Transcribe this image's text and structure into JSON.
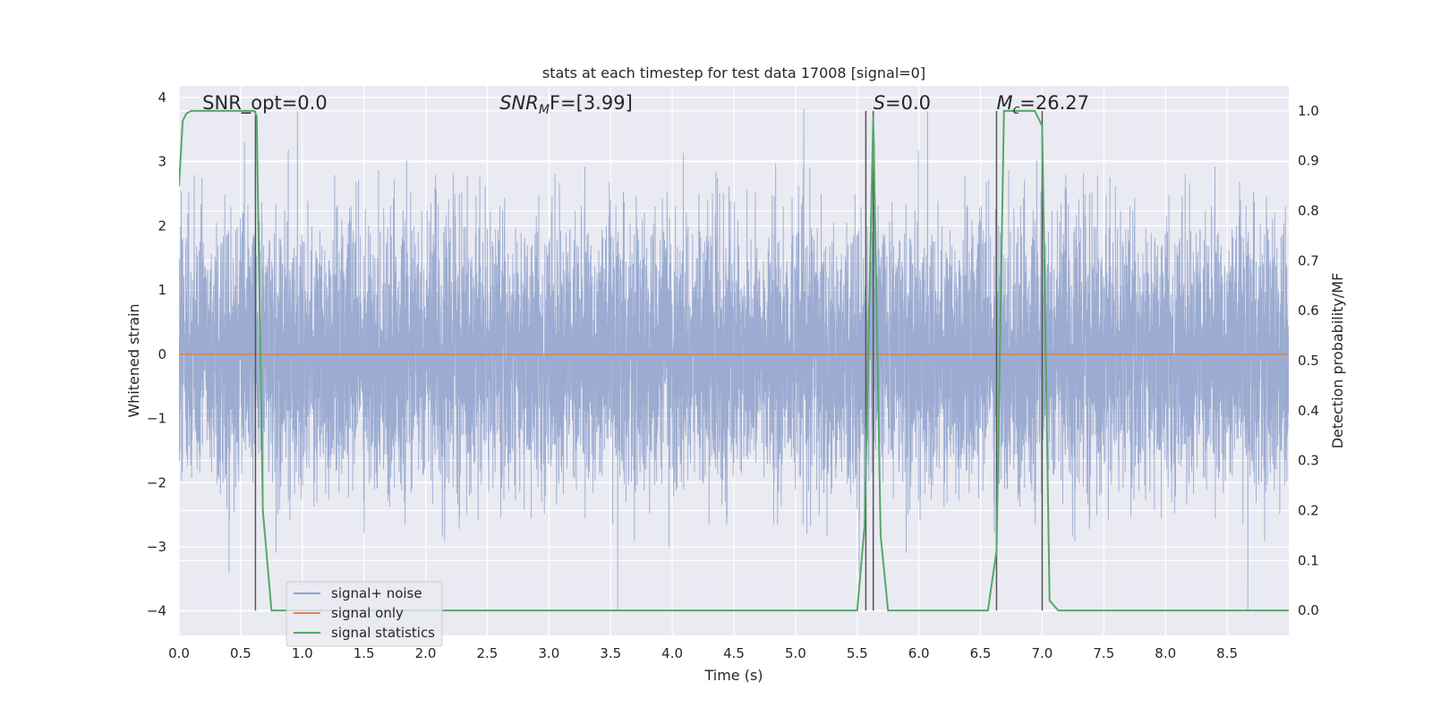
{
  "chart_data": {
    "type": "line",
    "title": "stats at each timestep for test data 17008 [signal=0]",
    "xlabel": "Time (s)",
    "ylabel_left": "Whitened strain",
    "ylabel_right": "Detection probability/MF",
    "xlim": [
      0.0,
      9.0
    ],
    "ylim_left": [
      -4.38,
      4.18
    ],
    "ylim_right": [
      -0.05,
      1.05
    ],
    "xticks": [
      0.0,
      0.5,
      1.0,
      1.5,
      2.0,
      2.5,
      3.0,
      3.5,
      4.0,
      4.5,
      5.0,
      5.5,
      6.0,
      6.5,
      7.0,
      7.5,
      8.0,
      8.5
    ],
    "xtick_labels": [
      "0.0",
      "0.5",
      "1.0",
      "1.5",
      "2.0",
      "2.5",
      "3.0",
      "3.5",
      "4.0",
      "4.5",
      "5.0",
      "5.5",
      "6.0",
      "6.5",
      "7.0",
      "7.5",
      "8.0",
      "8.5"
    ],
    "yticks_left": [
      -4,
      -3,
      -2,
      -1,
      0,
      1,
      2,
      3,
      4
    ],
    "ytick_labels_left": [
      "−4",
      "−3",
      "−2",
      "−1",
      "0",
      "1",
      "2",
      "3",
      "4"
    ],
    "yticks_right": [
      0.0,
      0.1,
      0.2,
      0.3,
      0.4,
      0.5,
      0.6,
      0.7,
      0.8,
      0.9,
      1.0
    ],
    "ytick_labels_right": [
      "0.0",
      "0.1",
      "0.2",
      "0.3",
      "0.4",
      "0.5",
      "0.6",
      "0.7",
      "0.8",
      "0.9",
      "1.0"
    ],
    "grid": true,
    "legend_position": "lower-left",
    "annotations": [
      {
        "text": "SNR_opt=0.0",
        "x": 0.19,
        "y_right": 1.0
      },
      {
        "text": "SNR",
        "sub": "M",
        "text_after": "F=[3.99]",
        "italic_main": true,
        "x": 2.6,
        "y_right": 1.0
      },
      {
        "text": "S",
        "text_after": "=0.0",
        "italic_main": true,
        "x": 5.63,
        "y_right": 1.0
      },
      {
        "text": "M",
        "sub": "c",
        "text_after": "=26.27",
        "italic_main": true,
        "x": 6.63,
        "y_right": 1.0
      }
    ],
    "vlines_x": [
      0.62,
      5.57,
      5.63,
      6.63,
      7.0
    ],
    "vline_top_right": 1.0,
    "series": [
      {
        "name": "signal+ noise",
        "color": "#8da0cb",
        "axis": "left",
        "kind": "noise",
        "sample_rate": 1024,
        "duration": 9.0,
        "amplitude_range": [
          -4.0,
          3.9
        ]
      },
      {
        "name": "signal only",
        "color": "#dd8452",
        "axis": "left",
        "x": [
          0.0,
          9.0
        ],
        "values": [
          0.0,
          0.0
        ]
      },
      {
        "name": "signal statistics",
        "color": "#55a868",
        "axis": "right",
        "x": [
          0.0,
          0.03,
          0.06,
          0.1,
          0.15,
          0.25,
          0.4,
          0.55,
          0.61,
          0.63,
          0.68,
          0.75,
          1.0,
          2.0,
          3.0,
          4.0,
          5.0,
          5.5,
          5.56,
          5.63,
          5.69,
          5.75,
          6.0,
          6.5,
          6.56,
          6.63,
          6.69,
          6.75,
          6.94,
          7.0,
          7.06,
          7.13,
          7.5,
          8.0,
          8.5,
          9.0
        ],
        "values": [
          0.85,
          0.98,
          0.995,
          1.0,
          1.0,
          1.0,
          1.0,
          1.0,
          1.0,
          0.99,
          0.2,
          0.0,
          0.0,
          0.0,
          0.0,
          0.0,
          0.0,
          0.0,
          0.17,
          0.99,
          0.15,
          0.0,
          0.0,
          0.0,
          0.0,
          0.12,
          1.0,
          1.0,
          1.0,
          0.97,
          0.02,
          0.0,
          0.0,
          0.0,
          0.0,
          0.0
        ]
      }
    ]
  }
}
